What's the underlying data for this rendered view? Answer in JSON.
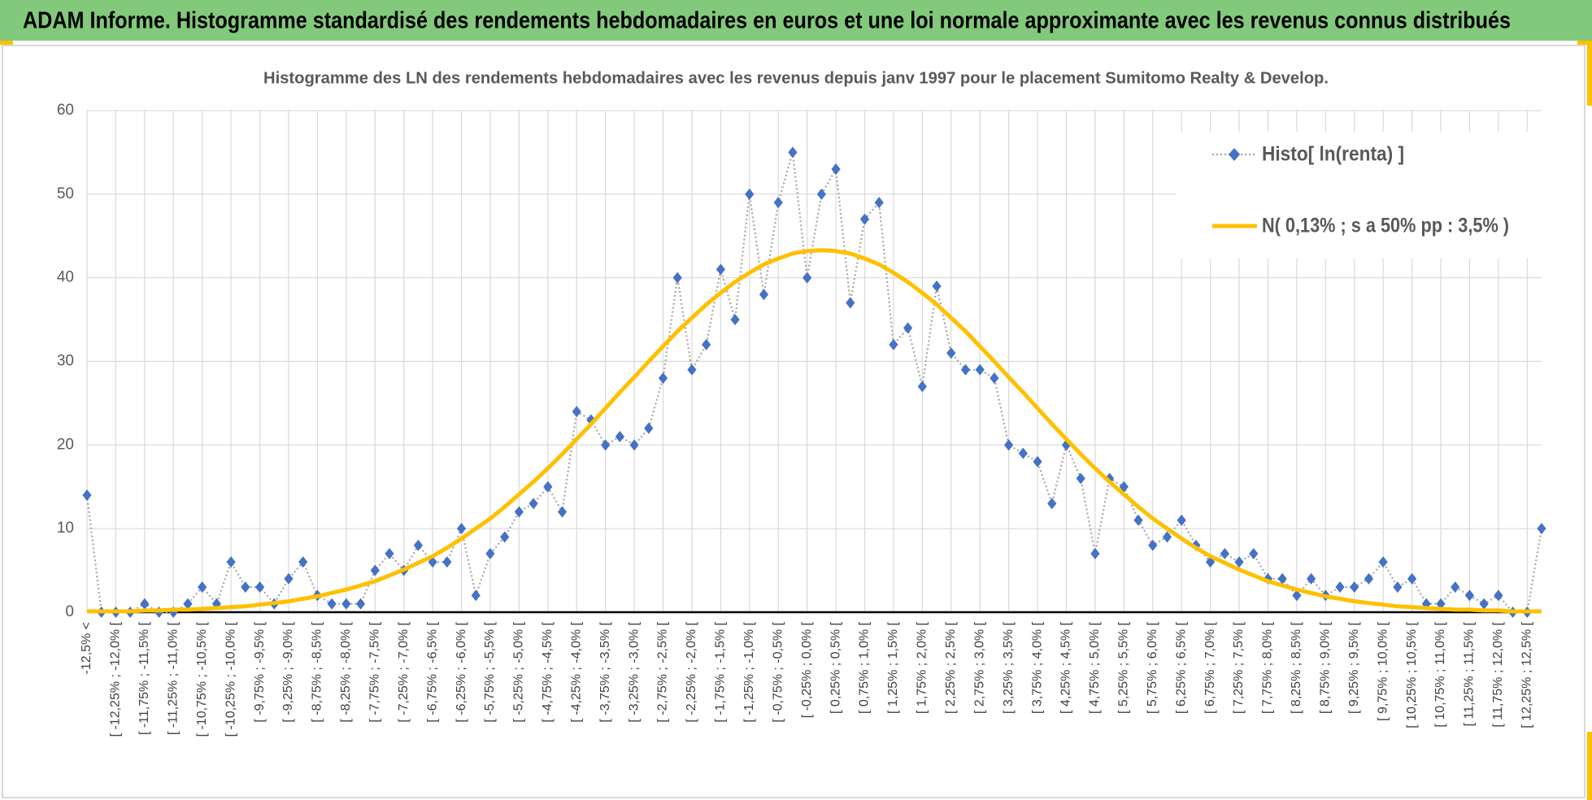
{
  "chart_data": {
    "type": "line",
    "title": "ADAM Informe. Histogramme standardisé des rendements hebdomadaires en euros et une loi normale approximante avec les revenus connus distribués",
    "subtitle": "Histogramme des LN des rendements hebdomadaires avec les revenus depuis janv 1997 pour le placement Sumitomo Realty & Develop.",
    "categories": [
      "-12,5% <",
      null,
      "[ -12,25% ; -12,0% [",
      null,
      "[ -11,75% ; -11,5% [",
      null,
      "[ -11,25% ; -11,0% [",
      null,
      "[ -10,75% ; -10,5% [",
      null,
      "[ -10,25% ; -10,0% [",
      null,
      "[ -9,75% ; -9,5% [",
      null,
      "[ -9,25% ; -9,0% [",
      null,
      "[ -8,75% ; -8,5% [",
      null,
      "[ -8,25% ; -8,0% [",
      null,
      "[ -7,75% ; -7,5% [",
      null,
      "[ -7,25% ; -7,0% [",
      null,
      "[ -6,75% ; -6,5% [",
      null,
      "[ -6,25% ; -6,0% [",
      null,
      "[ -5,75% ; -5,5% [",
      null,
      "[ -5,25% ; -5,0% [",
      null,
      "[ -4,75% ; -4,5% [",
      null,
      "[ -4,25% ; -4,0% [",
      null,
      "[ -3,75% ; -3,5% [",
      null,
      "[ -3,25% ; -3,0% [",
      null,
      "[ -2,75% ; -2,5% [",
      null,
      "[ -2,25% ; -2,0% [",
      null,
      "[ -1,75% ; -1,5% [",
      null,
      "[ -1,25% ; -1,0% [",
      null,
      "[ -0,75% ; -0,5% [",
      null,
      "[ -0,25% ; 0,0% [",
      null,
      "[ 0,25% ; 0,5% [",
      null,
      "[ 0,75% ; 1,0% [",
      null,
      "[ 1,25% ; 1,5% [",
      null,
      "[ 1,75% ; 2,0% [",
      null,
      "[ 2,25% ; 2,5% [",
      null,
      "[ 2,75% ; 3,0% [",
      null,
      "[ 3,25% ; 3,5% [",
      null,
      "[ 3,75% ; 4,0% [",
      null,
      "[ 4,25% ; 4,5% [",
      null,
      "[ 4,75% ; 5,0% [",
      null,
      "[ 5,25% ; 5,5% [",
      null,
      "[ 5,75% ; 6,0% [",
      null,
      "[ 6,25% ; 6,5% [",
      null,
      "[ 6,75% ; 7,0% [",
      null,
      "[ 7,25% ; 7,5% [",
      null,
      "[ 7,75% ; 8,0% [",
      null,
      "[ 8,25% ; 8,5% [",
      null,
      "[ 8,75% ; 9,0% [",
      null,
      "[ 9,25% ; 9,5% [",
      null,
      "[ 9,75% ; 10,0% [",
      null,
      "[ 10,25% ; 10,5% [",
      null,
      "[ 10,75% ; 11,0% [",
      null,
      "[ 11,25% ; 11,5% [",
      null,
      "[ 11,75% ; 12,0% [",
      null,
      "[ 12,25% ; 12,5% [",
      null
    ],
    "series": [
      {
        "name": "Histo[ ln(renta) ]",
        "color": "#4472c4",
        "line_color": "#a6a6a6",
        "values": [
          14,
          0,
          0,
          0,
          1,
          0,
          0,
          1,
          3,
          1,
          6,
          3,
          3,
          1,
          4,
          6,
          2,
          1,
          1,
          1,
          5,
          7,
          5,
          8,
          6,
          6,
          10,
          2,
          7,
          9,
          12,
          13,
          15,
          12,
          24,
          23,
          20,
          21,
          20,
          22,
          28,
          40,
          29,
          32,
          41,
          35,
          50,
          38,
          49,
          55,
          40,
          50,
          53,
          37,
          47,
          49,
          32,
          34,
          27,
          39,
          31,
          29,
          29,
          28,
          20,
          19,
          18,
          13,
          20,
          16,
          7,
          16,
          15,
          11,
          8,
          9,
          11,
          8,
          6,
          7,
          6,
          7,
          4,
          4,
          2,
          4,
          2,
          3,
          3,
          4,
          6,
          3,
          4,
          1,
          1,
          3,
          2,
          1,
          2,
          0,
          0,
          10
        ]
      },
      {
        "name": "N( 0,13% ; s a 50% pp : 3,5% )",
        "color": "#ffc000",
        "values": [
          0.1,
          0.1,
          0.1,
          0.1,
          0.2,
          0.2,
          0.3,
          0.3,
          0.4,
          0.5,
          0.6,
          0.7,
          0.9,
          1.1,
          1.3,
          1.6,
          1.9,
          2.3,
          2.7,
          3.2,
          3.7,
          4.4,
          5.1,
          5.9,
          6.7,
          7.7,
          8.8,
          10.0,
          11.2,
          12.6,
          14.1,
          15.6,
          17.2,
          18.9,
          20.7,
          22.5,
          24.4,
          26.3,
          28.1,
          30.0,
          31.8,
          33.6,
          35.2,
          36.8,
          38.2,
          39.5,
          40.6,
          41.6,
          42.3,
          42.9,
          43.2,
          43.3,
          43.2,
          42.9,
          42.3,
          41.6,
          40.6,
          39.5,
          38.2,
          36.8,
          35.2,
          33.6,
          31.8,
          30.0,
          28.1,
          26.3,
          24.4,
          22.5,
          20.7,
          18.9,
          17.2,
          15.6,
          14.1,
          12.6,
          11.2,
          10.0,
          8.8,
          7.7,
          6.7,
          5.9,
          5.1,
          4.4,
          3.7,
          3.2,
          2.7,
          2.3,
          1.9,
          1.6,
          1.3,
          1.1,
          0.9,
          0.7,
          0.6,
          0.5,
          0.4,
          0.3,
          0.3,
          0.2,
          0.2,
          0.1,
          0.1,
          0.1
        ]
      }
    ],
    "ylim": [
      0,
      60
    ],
    "yticks": [
      0,
      10,
      20,
      30,
      40,
      50,
      60
    ],
    "grid": true,
    "legend": "top-right"
  }
}
